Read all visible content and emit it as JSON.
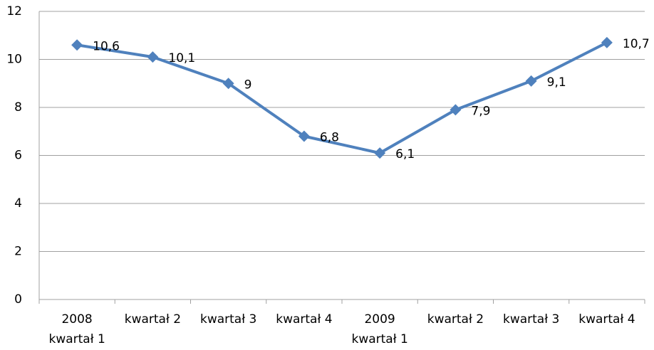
{
  "chart_data": {
    "type": "line",
    "categories": [
      "2008\nkwartał 1",
      "kwartał 2",
      "kwartał 3",
      "kwartał 4",
      "2009\nkwartał 1",
      "kwartał 2",
      "kwartał 3",
      "kwartał 4"
    ],
    "series": [
      {
        "color": "#4f81bd",
        "values": [
          10.6,
          10.1,
          9,
          6.8,
          6.1,
          7.9,
          9.1,
          10.7
        ],
        "value_labels": [
          "10,6",
          "10,1",
          "9",
          "6,8",
          "6,1",
          "7,9",
          "9,1",
          "10,7"
        ]
      }
    ],
    "ylim": [
      0,
      12
    ],
    "yticks": [
      0,
      2,
      4,
      6,
      8,
      10,
      12
    ],
    "grid": true
  }
}
